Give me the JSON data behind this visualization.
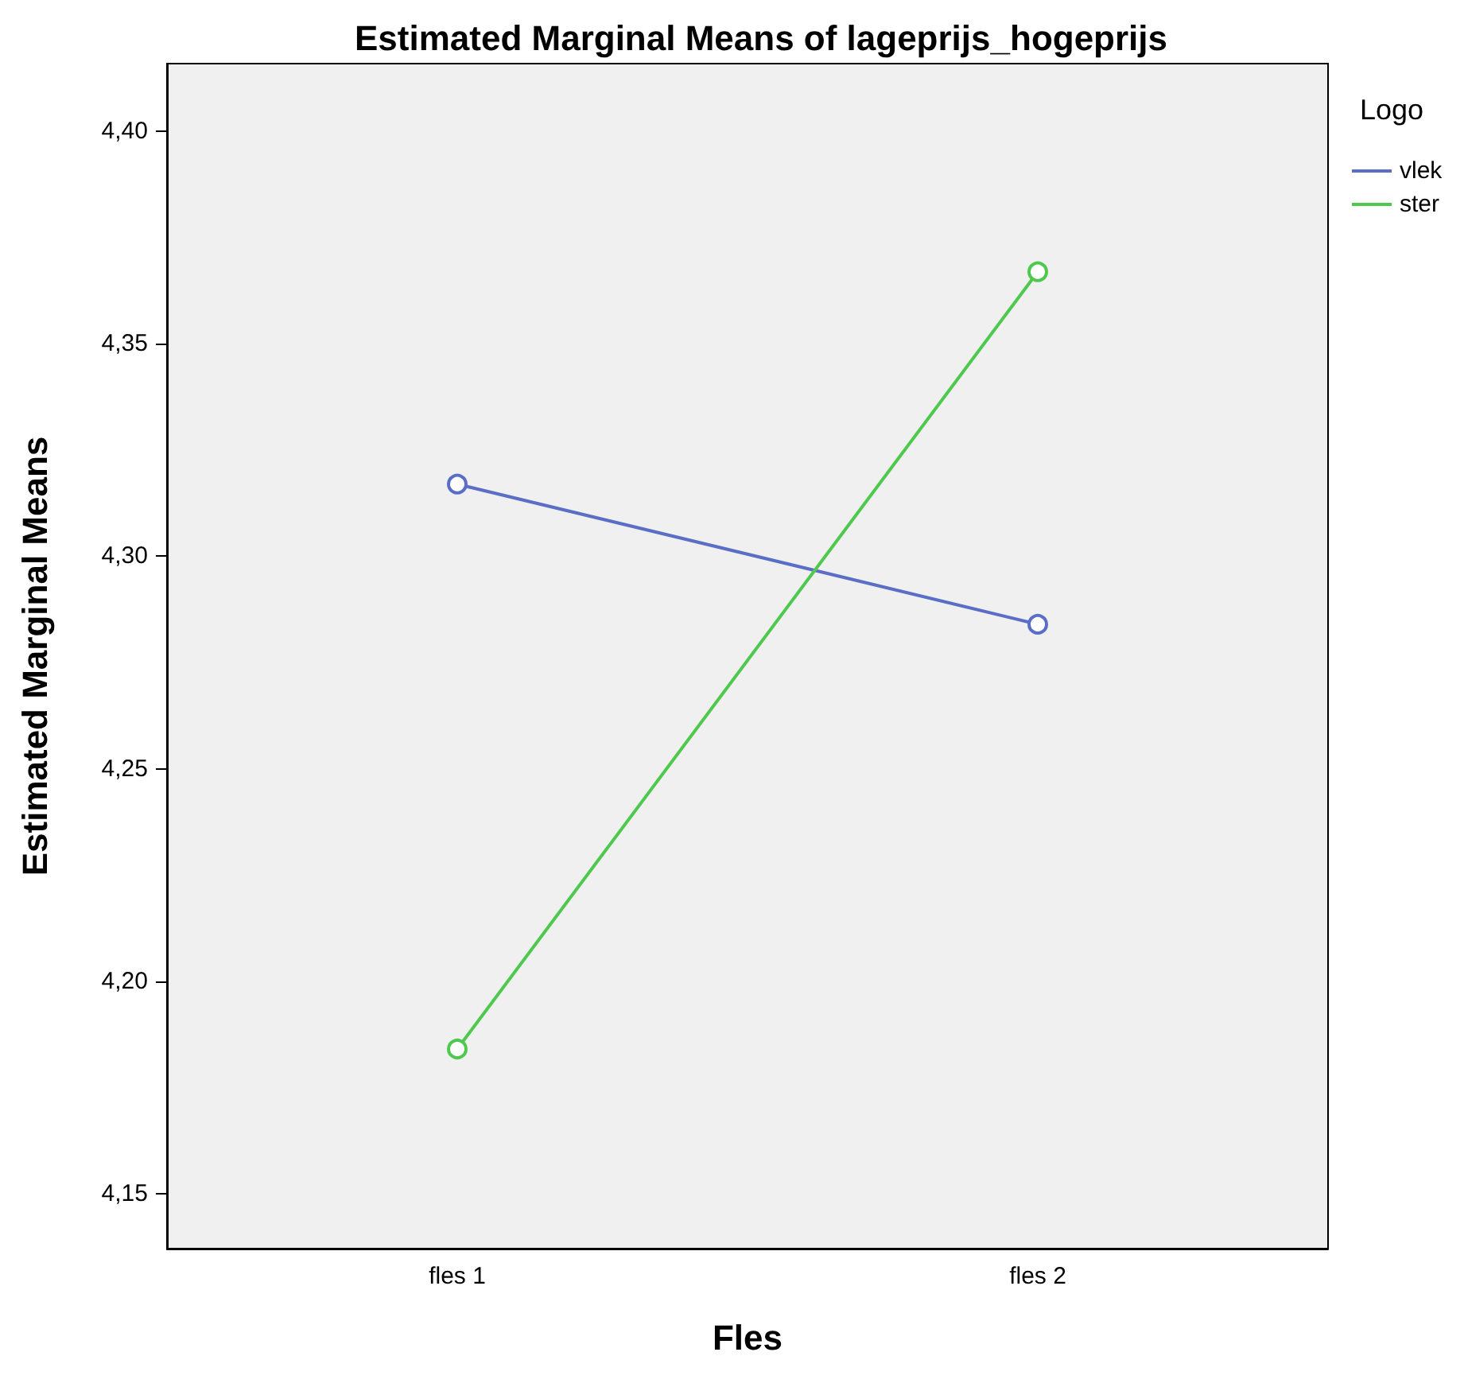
{
  "chart_data": {
    "type": "line",
    "title": "Estimated Marginal Means of lageprijs_hogeprijs",
    "xlabel": "Fles",
    "ylabel": "Estimated Marginal Means",
    "legend_title": "Logo",
    "categories": [
      "fles 1",
      "fles 2"
    ],
    "series": [
      {
        "name": "vlek",
        "color": "#5a6ec6",
        "values": [
          4.317,
          4.284
        ]
      },
      {
        "name": "ster",
        "color": "#4ec94e",
        "values": [
          4.184,
          4.367
        ]
      }
    ],
    "ylim": [
      4.137,
      4.416
    ],
    "yticks": [
      {
        "value": 4.15,
        "label": "4,15"
      },
      {
        "value": 4.2,
        "label": "4,20"
      },
      {
        "value": 4.25,
        "label": "4,25"
      },
      {
        "value": 4.3,
        "label": "4,30"
      },
      {
        "value": 4.35,
        "label": "4,35"
      },
      {
        "value": 4.4,
        "label": "4,40"
      }
    ],
    "grid": false,
    "legend": "top right",
    "marker": "circle",
    "line_style": "solid"
  }
}
